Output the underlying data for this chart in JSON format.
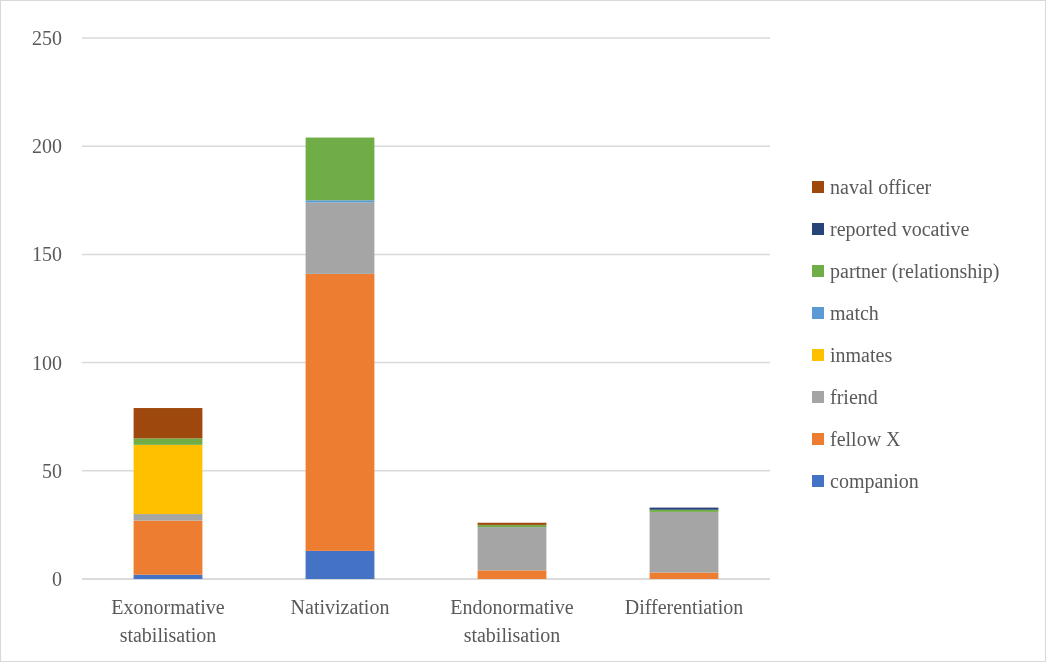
{
  "chart_data": {
    "type": "bar",
    "stacked": true,
    "categories": [
      "Exonormative stabilisation",
      "Nativization",
      "Endonormative stabilisation",
      "Differentiation"
    ],
    "series": [
      {
        "name": "companion",
        "color": "#4472c4",
        "values": [
          2,
          13,
          0,
          0
        ]
      },
      {
        "name": "fellow X",
        "color": "#ed7d31",
        "values": [
          25,
          128,
          4,
          3
        ]
      },
      {
        "name": "friend",
        "color": "#a5a5a5",
        "values": [
          3,
          33,
          20,
          28
        ]
      },
      {
        "name": "inmates",
        "color": "#ffc000",
        "values": [
          32,
          0,
          0,
          0
        ]
      },
      {
        "name": "match",
        "color": "#5b9bd5",
        "values": [
          0,
          1,
          0,
          0
        ]
      },
      {
        "name": "partner (relationship)",
        "color": "#70ad47",
        "values": [
          3,
          29,
          1,
          1
        ]
      },
      {
        "name": "reported vocative",
        "color": "#264478",
        "values": [
          0,
          0,
          0,
          1
        ]
      },
      {
        "name": "naval officer",
        "color": "#9e480e",
        "values": [
          14,
          0,
          1,
          0
        ]
      }
    ],
    "ylim": [
      0,
      250
    ],
    "yticks": [
      0,
      50,
      100,
      150,
      200,
      250
    ],
    "grid": "y",
    "legend": "right"
  }
}
